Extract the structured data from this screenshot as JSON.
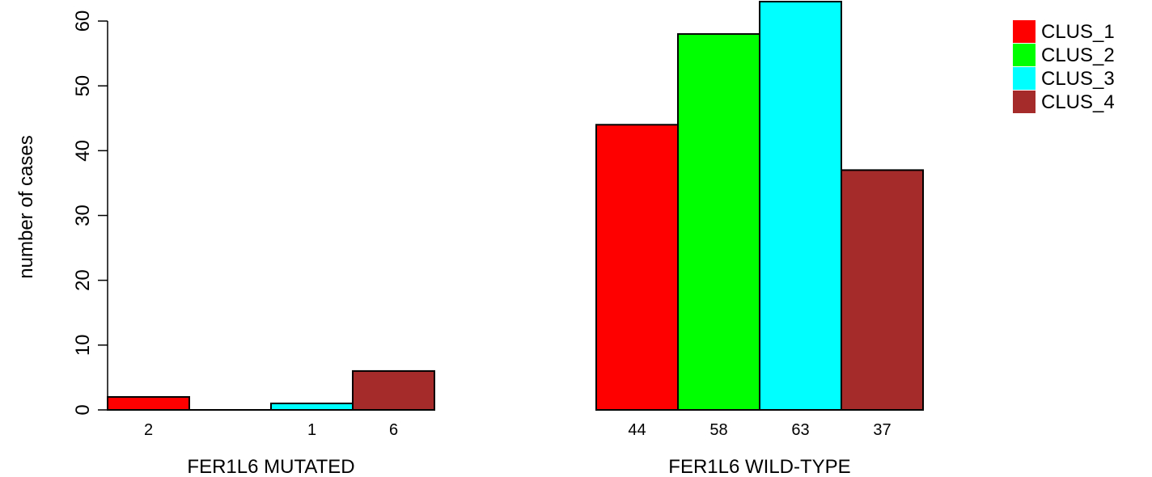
{
  "chart_data": {
    "type": "bar",
    "ylabel": "number of cases",
    "ylim": [
      0,
      63
    ],
    "yticks": [
      0,
      10,
      20,
      30,
      40,
      50,
      60
    ],
    "groups": [
      "FER1L6 MUTATED",
      "FER1L6 WILD-TYPE"
    ],
    "series": [
      {
        "name": "CLUS_1",
        "color": "#ff0000",
        "values": [
          2,
          44
        ]
      },
      {
        "name": "CLUS_2",
        "color": "#00ff00",
        "values": [
          0,
          58
        ]
      },
      {
        "name": "CLUS_3",
        "color": "#00ffff",
        "values": [
          1,
          63
        ]
      },
      {
        "name": "CLUS_4",
        "color": "#a52a2a",
        "values": [
          6,
          37
        ]
      }
    ],
    "bar_labels": [
      [
        "2",
        "",
        "1",
        "6"
      ],
      [
        "44",
        "58",
        "63",
        "37"
      ]
    ],
    "legend_position": "top-right",
    "grid": false
  }
}
